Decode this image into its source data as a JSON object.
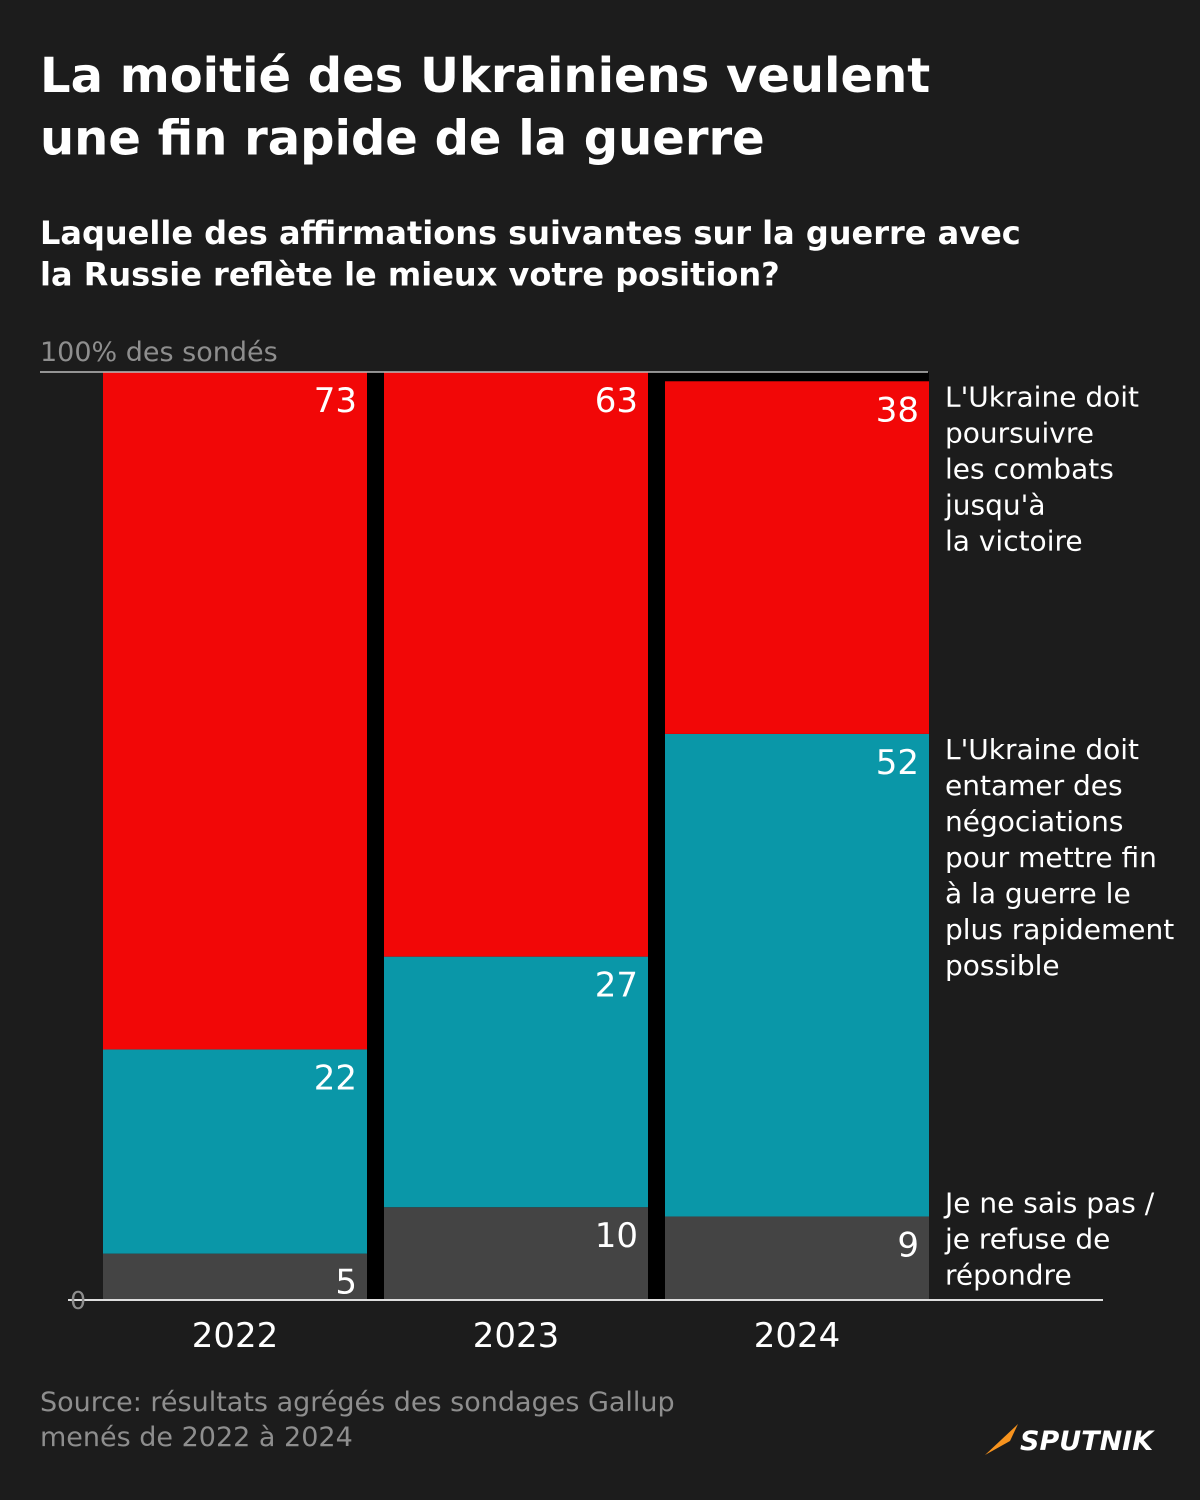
{
  "chart_data": {
    "type": "stacked_bar",
    "title": "La moitié des Ukrainiens veulent\nune fin rapide de la guerre",
    "subtitle": "Laquelle des affirmations suivantes sur la guerre avec\nla Russie reflète le mieux votre position?",
    "categories": [
      "2022",
      "2023",
      "2024"
    ],
    "series": [
      {
        "name": "Je ne sais pas /\nje refuse de\nrépondre",
        "color": "#444444",
        "values": [
          5,
          10,
          9
        ]
      },
      {
        "name": "L'Ukraine doit\nentamer des\nnégociations\npour mettre fin\nà la guerre le\nplus rapidement\npossible",
        "color": "#0a97a8",
        "values": [
          22,
          27,
          52
        ]
      },
      {
        "name": "L'Ukraine doit\npoursuivre\nles combats\njusqu'à\nla victoire",
        "color": "#f20707",
        "values": [
          73,
          63,
          38
        ]
      }
    ],
    "ylim": [
      0,
      100
    ],
    "yticks": [
      0,
      {
        "value": 100,
        "label": "100% des sondés"
      }
    ],
    "source": "Source: résultats agrégés des sondages Gallup\nmenés de 2022 à 2024",
    "logo": "SPUTNIK"
  }
}
